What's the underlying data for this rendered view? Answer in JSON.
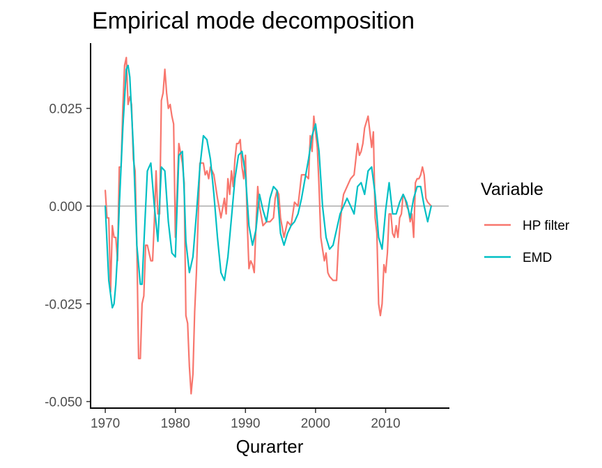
{
  "chart_data": {
    "type": "line",
    "title": "Empirical mode decomposition",
    "xlabel": "Qurarter",
    "ylabel": "",
    "xlim": [
      1968,
      2019
    ],
    "ylim": [
      -0.0515,
      0.0415
    ],
    "x_ticks": [
      1970,
      1980,
      1990,
      2000,
      2010
    ],
    "x_tick_labels": [
      "1970",
      "1980",
      "1990",
      "2000",
      "2010"
    ],
    "y_ticks": [
      -0.05,
      -0.025,
      0.0,
      0.025
    ],
    "y_tick_labels": [
      "-0.050",
      "-0.025",
      "0.000",
      "0.025"
    ],
    "zero_line": 0,
    "grid": false,
    "legend": {
      "title": "Variable",
      "position": "right"
    },
    "series": [
      {
        "name": "HP filter",
        "color": "#F8766D",
        "x": [
          1970.0,
          1970.25,
          1970.5,
          1970.75,
          1971.0,
          1971.25,
          1971.5,
          1971.75,
          1972.0,
          1972.25,
          1972.5,
          1972.75,
          1973.0,
          1973.25,
          1973.5,
          1973.75,
          1974.0,
          1974.25,
          1974.5,
          1974.75,
          1975.0,
          1975.25,
          1975.5,
          1975.75,
          1976.0,
          1976.25,
          1976.5,
          1976.75,
          1977.0,
          1977.25,
          1977.5,
          1977.75,
          1978.0,
          1978.25,
          1978.5,
          1978.75,
          1979.0,
          1979.25,
          1979.5,
          1979.75,
          1980.0,
          1980.5,
          1981.0,
          1981.25,
          1981.5,
          1981.75,
          1982.0,
          1982.25,
          1982.5,
          1982.75,
          1983.0,
          1983.5,
          1984.0,
          1984.25,
          1984.5,
          1984.75,
          1985.0,
          1985.5,
          1986.0,
          1986.5,
          1987.0,
          1987.25,
          1987.5,
          1987.75,
          1988.0,
          1988.25,
          1988.5,
          1988.75,
          1989.0,
          1989.25,
          1989.5,
          1989.75,
          1990.0,
          1990.25,
          1990.5,
          1990.75,
          1991.0,
          1991.25,
          1991.5,
          1991.75,
          1992.0,
          1992.5,
          1993.0,
          1993.5,
          1994.0,
          1994.25,
          1994.5,
          1994.75,
          1995.0,
          1995.5,
          1996.0,
          1996.5,
          1997.0,
          1997.5,
          1998.0,
          1998.5,
          1999.0,
          1999.25,
          1999.5,
          1999.75,
          2000.0,
          2000.25,
          2000.5,
          2000.75,
          2001.0,
          2001.25,
          2001.5,
          2001.75,
          2002.0,
          2002.5,
          2003.0,
          2003.25,
          2003.5,
          2003.75,
          2004.0,
          2004.5,
          2005.0,
          2005.5,
          2006.0,
          2006.25,
          2006.5,
          2006.75,
          2007.0,
          2007.5,
          2008.0,
          2008.25,
          2008.5,
          2008.75,
          2009.0,
          2009.25,
          2009.5,
          2009.75,
          2010.0,
          2010.25,
          2010.5,
          2010.75,
          2011.0,
          2011.25,
          2011.5,
          2011.75,
          2012.0,
          2012.25,
          2012.5,
          2012.75,
          2013.0,
          2013.25,
          2013.5,
          2013.75,
          2014.0,
          2014.25,
          2014.5,
          2014.75,
          2015.0,
          2015.25,
          2015.5,
          2015.75,
          2016.0,
          2016.5
        ],
        "values": [
          0.004,
          -0.003,
          -0.003,
          -0.022,
          -0.005,
          -0.008,
          -0.008,
          -0.014,
          0.01,
          0.01,
          0.025,
          0.036,
          0.038,
          0.026,
          0.028,
          0.026,
          0.012,
          0.009,
          -0.01,
          -0.039,
          -0.039,
          -0.025,
          -0.023,
          -0.01,
          -0.01,
          -0.012,
          -0.014,
          -0.014,
          -0.004,
          0.009,
          -0.002,
          -0.002,
          0.027,
          0.029,
          0.035,
          0.029,
          0.025,
          0.026,
          0.023,
          0.021,
          -0.008,
          0.016,
          0.011,
          0.006,
          -0.028,
          -0.03,
          -0.041,
          -0.048,
          -0.043,
          -0.027,
          -0.017,
          0.011,
          0.011,
          0.008,
          0.009,
          0.007,
          0.01,
          0.008,
          0.002,
          -0.003,
          0.002,
          -0.002,
          0.007,
          0.003,
          0.009,
          0.005,
          0.012,
          0.016,
          0.016,
          0.017,
          0.01,
          0.007,
          0.013,
          -0.004,
          -0.016,
          -0.014,
          -0.015,
          -0.017,
          -0.005,
          0.005,
          0.0,
          -0.005,
          -0.004,
          -0.004,
          -0.003,
          0.002,
          0.004,
          0.003,
          -0.003,
          -0.008,
          -0.004,
          -0.005,
          0.001,
          0.0,
          0.008,
          0.008,
          0.007,
          0.018,
          0.014,
          0.023,
          0.019,
          0.015,
          0.005,
          -0.008,
          -0.011,
          -0.014,
          -0.012,
          -0.017,
          -0.018,
          -0.019,
          -0.019,
          -0.01,
          -0.005,
          0.0,
          0.003,
          0.005,
          0.007,
          0.008,
          0.016,
          0.013,
          0.014,
          0.016,
          0.02,
          0.023,
          0.015,
          0.019,
          -0.003,
          -0.007,
          -0.025,
          -0.028,
          -0.025,
          -0.015,
          -0.017,
          -0.012,
          -0.002,
          -0.002,
          -0.007,
          -0.008,
          -0.005,
          -0.008,
          -0.003,
          -0.002,
          0.003,
          0.002,
          0.0,
          -0.001,
          -0.004,
          -0.002,
          -0.008,
          0.006,
          0.007,
          0.007,
          0.008,
          0.01,
          0.008,
          0.002,
          0.001,
          0.0
        ]
      },
      {
        "name": "EMD",
        "color": "#00BFC4",
        "x": [
          1970.0,
          1970.5,
          1971.0,
          1971.25,
          1971.5,
          1971.75,
          1972.0,
          1972.5,
          1973.0,
          1973.25,
          1973.5,
          1974.0,
          1974.5,
          1975.0,
          1975.25,
          1975.5,
          1976.0,
          1976.5,
          1977.0,
          1977.5,
          1978.0,
          1978.5,
          1979.0,
          1979.5,
          1980.0,
          1980.5,
          1981.0,
          1981.25,
          1981.5,
          1982.0,
          1982.5,
          1983.0,
          1983.5,
          1984.0,
          1984.5,
          1985.0,
          1985.5,
          1986.0,
          1986.5,
          1987.0,
          1987.5,
          1988.0,
          1988.5,
          1989.0,
          1989.5,
          1990.0,
          1990.5,
          1991.0,
          1991.5,
          1992.0,
          1992.5,
          1993.0,
          1993.5,
          1994.0,
          1994.5,
          1995.0,
          1995.5,
          1996.0,
          1996.5,
          1997.0,
          1997.5,
          1998.0,
          1998.5,
          1999.0,
          1999.5,
          2000.0,
          2000.5,
          2001.0,
          2001.5,
          2002.0,
          2002.5,
          2003.0,
          2003.5,
          2004.0,
          2004.5,
          2005.0,
          2005.5,
          2006.0,
          2006.5,
          2007.0,
          2007.5,
          2008.0,
          2008.5,
          2009.0,
          2009.5,
          2010.0,
          2010.5,
          2011.0,
          2011.5,
          2012.0,
          2012.5,
          2013.0,
          2013.5,
          2014.0,
          2014.5,
          2015.0,
          2015.5,
          2016.0,
          2016.5
        ],
        "values": [
          0.0,
          -0.019,
          -0.026,
          -0.025,
          -0.02,
          -0.012,
          0.0,
          0.02,
          0.035,
          0.036,
          0.033,
          0.015,
          -0.01,
          -0.02,
          -0.02,
          -0.01,
          0.009,
          0.011,
          0.0,
          -0.009,
          0.01,
          0.009,
          -0.004,
          -0.012,
          -0.013,
          0.013,
          0.014,
          0.004,
          -0.009,
          -0.017,
          -0.013,
          -0.002,
          0.01,
          0.018,
          0.017,
          0.012,
          0.003,
          -0.008,
          -0.017,
          -0.019,
          -0.013,
          -0.003,
          0.007,
          0.013,
          0.014,
          0.008,
          -0.005,
          -0.01,
          -0.006,
          0.003,
          -0.001,
          -0.004,
          0.002,
          0.005,
          0.004,
          -0.007,
          -0.01,
          -0.007,
          -0.005,
          -0.004,
          -0.002,
          0.002,
          0.007,
          0.012,
          0.018,
          0.021,
          0.014,
          0.0,
          -0.008,
          -0.011,
          -0.01,
          -0.006,
          -0.002,
          0.0,
          0.002,
          0.0,
          -0.002,
          0.005,
          0.006,
          0.003,
          0.009,
          0.01,
          0.003,
          -0.008,
          -0.011,
          -0.001,
          0.006,
          -0.002,
          -0.002,
          0.001,
          0.003,
          0.001,
          -0.003,
          0.002,
          0.005,
          0.005,
          0.0,
          -0.004,
          0.0
        ]
      }
    ]
  }
}
